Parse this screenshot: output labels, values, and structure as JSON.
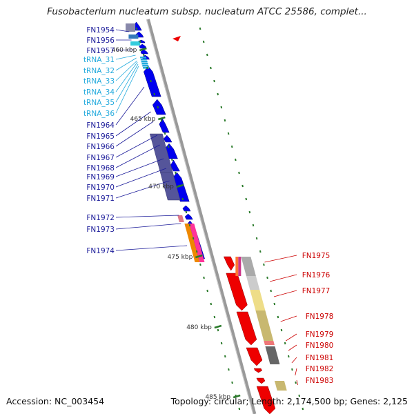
{
  "title": "Fusobacterium nucleatum subsp. nucleatum ATCC 25586, complet...",
  "footer": {
    "accession": "Accession: NC_003454",
    "summary": "Topology: circular; Length: 2,174,500 bp; Genes: 2,125"
  },
  "colors": {
    "forward_gene": "#0000ee",
    "reverse_gene": "#ee0000",
    "trna": "#22aadd",
    "left_label": "#1a1a99",
    "right_label": "#cc0000",
    "axis": "#999999",
    "tick": "#2a7a2a"
  },
  "kbp_ticks": [
    {
      "label": "460 kbp"
    },
    {
      "label": "465 kbp"
    },
    {
      "label": "470 kbp"
    },
    {
      "label": "475 kbp"
    },
    {
      "label": "480 kbp"
    },
    {
      "label": "485 kbp"
    }
  ],
  "left_labels": [
    {
      "text": "FN1954",
      "kind": "gene"
    },
    {
      "text": "FN1956",
      "kind": "gene"
    },
    {
      "text": "FN1957",
      "kind": "gene"
    },
    {
      "text": "tRNA_31",
      "kind": "trna"
    },
    {
      "text": "tRNA_32",
      "kind": "trna"
    },
    {
      "text": "tRNA_33",
      "kind": "trna"
    },
    {
      "text": "tRNA_34",
      "kind": "trna"
    },
    {
      "text": "tRNA_35",
      "kind": "trna"
    },
    {
      "text": "tRNA_36",
      "kind": "trna"
    },
    {
      "text": "FN1964",
      "kind": "gene"
    },
    {
      "text": "FN1965",
      "kind": "gene"
    },
    {
      "text": "FN1966",
      "kind": "gene"
    },
    {
      "text": "FN1967",
      "kind": "gene"
    },
    {
      "text": "FN1968",
      "kind": "gene"
    },
    {
      "text": "FN1969",
      "kind": "gene"
    },
    {
      "text": "FN1970",
      "kind": "gene"
    },
    {
      "text": "FN1971",
      "kind": "gene"
    },
    {
      "text": "FN1972",
      "kind": "gene"
    },
    {
      "text": "FN1973",
      "kind": "gene"
    },
    {
      "text": "FN1974",
      "kind": "gene"
    }
  ],
  "right_labels": [
    {
      "text": "FN1975"
    },
    {
      "text": "FN1976"
    },
    {
      "text": "FN1977"
    },
    {
      "text": "FN1978"
    },
    {
      "text": "FN1979"
    },
    {
      "text": "FN1980"
    },
    {
      "text": "FN1981"
    },
    {
      "text": "FN1982"
    },
    {
      "text": "FN1983"
    }
  ]
}
